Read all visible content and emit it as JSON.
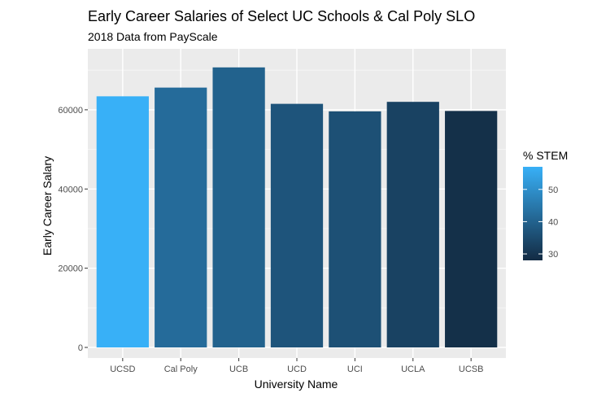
{
  "chart_data": {
    "type": "bar",
    "title": "Early Career Salaries of Select UC Schools & Cal Poly SLO",
    "subtitle": "2018 Data from PayScale",
    "xlabel": "University Name",
    "ylabel": "Early Career Salary",
    "categories": [
      "UCSD",
      "Cal Poly",
      "UCB",
      "UCD",
      "UCI",
      "UCLA",
      "UCSB"
    ],
    "values": [
      63400,
      65600,
      70700,
      61500,
      59600,
      62000,
      59700
    ],
    "pct_stem": [
      57,
      42,
      40,
      37,
      36,
      33,
      29
    ],
    "ylim": [
      0,
      72000
    ],
    "yticks": [
      0,
      20000,
      40000,
      60000
    ],
    "ytick_labels": [
      "0",
      "20000",
      "40000",
      "60000"
    ],
    "grid": true,
    "legend": {
      "title": "% STEM",
      "position": "right",
      "range": [
        28,
        57
      ],
      "ticks": [
        30,
        40,
        50
      ],
      "tick_labels": [
        "30",
        "40",
        "50"
      ],
      "low_color": "#132b43",
      "high_color": "#38b0f7"
    },
    "colors": {
      "panel": "#ebebeb",
      "grid_major": "#ffffff",
      "grid_minor": "#f5f5f5"
    }
  }
}
